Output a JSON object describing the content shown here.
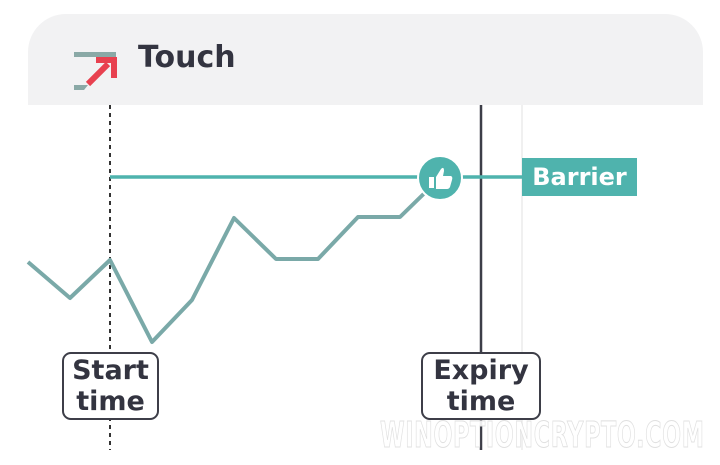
{
  "header": {
    "title": "Touch",
    "icon": "touch-arrow-icon"
  },
  "labels": {
    "barrier": "Barrier",
    "start_time": [
      "Start",
      "time"
    ],
    "expiry_time": [
      "Expiry",
      "time"
    ]
  },
  "colors": {
    "barrier": "#4fb3ad",
    "price_line": "#7aa9a8",
    "arrow": "#e8414f",
    "text": "#333440"
  },
  "thumb_icon": "thumbs-up-icon",
  "watermark": "WINOPTIONCRYPTO.COM"
}
